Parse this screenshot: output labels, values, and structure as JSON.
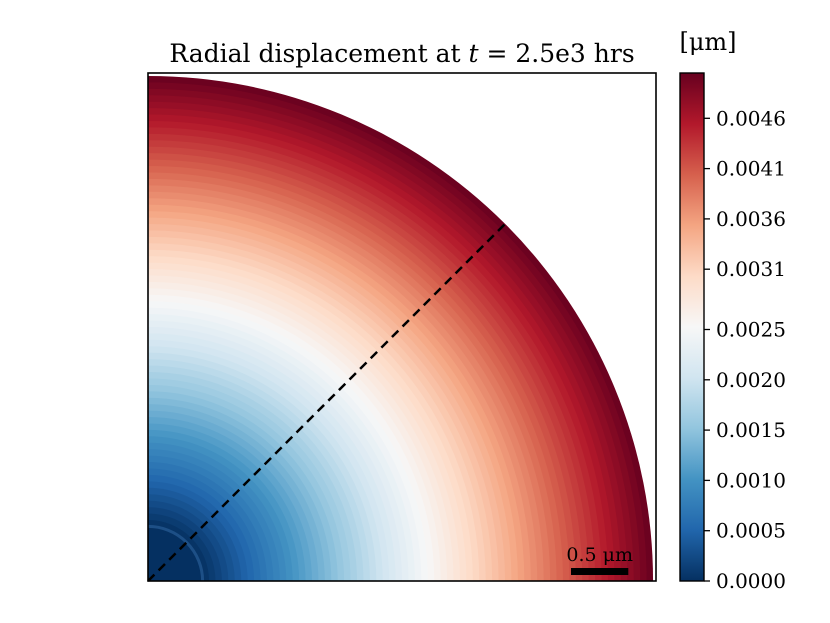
{
  "chart_data": {
    "type": "heatmap",
    "title_prefix": "Radial displacement at ",
    "title_var": "t",
    "title_suffix": " = 2.5e3 hrs",
    "colorbar": {
      "unit_label": "[μm]",
      "min": 0.0,
      "max": 0.00505,
      "ticks": [
        0.0,
        0.0005,
        0.001,
        0.0015,
        0.002,
        0.0025,
        0.0031,
        0.0036,
        0.0041,
        0.0046
      ],
      "tick_labels": [
        "0.0000",
        "0.0005",
        "0.0010",
        "0.0015",
        "0.0020",
        "0.0025",
        "0.0031",
        "0.0036",
        "0.0041",
        "0.0046"
      ],
      "colormap": "RdBu_r",
      "stops": [
        "#053061",
        "#2166ac",
        "#4393c3",
        "#92c5de",
        "#d1e5f0",
        "#f7f7f7",
        "#fddbc7",
        "#f4a582",
        "#d6604d",
        "#b2182b",
        "#67001f"
      ]
    },
    "domain": {
      "shape": "quarter-annulus",
      "inner_radius_um": 0.2,
      "outer_radius_um": 1.85,
      "inner_radius_value": 0.0,
      "outer_radius_value": 0.00505
    },
    "scale_bar": {
      "label": "0.5 μm",
      "length_um": 0.5
    },
    "diagonal_line": {
      "style": "dashed",
      "color": "#000000",
      "angle_deg": 45
    }
  }
}
